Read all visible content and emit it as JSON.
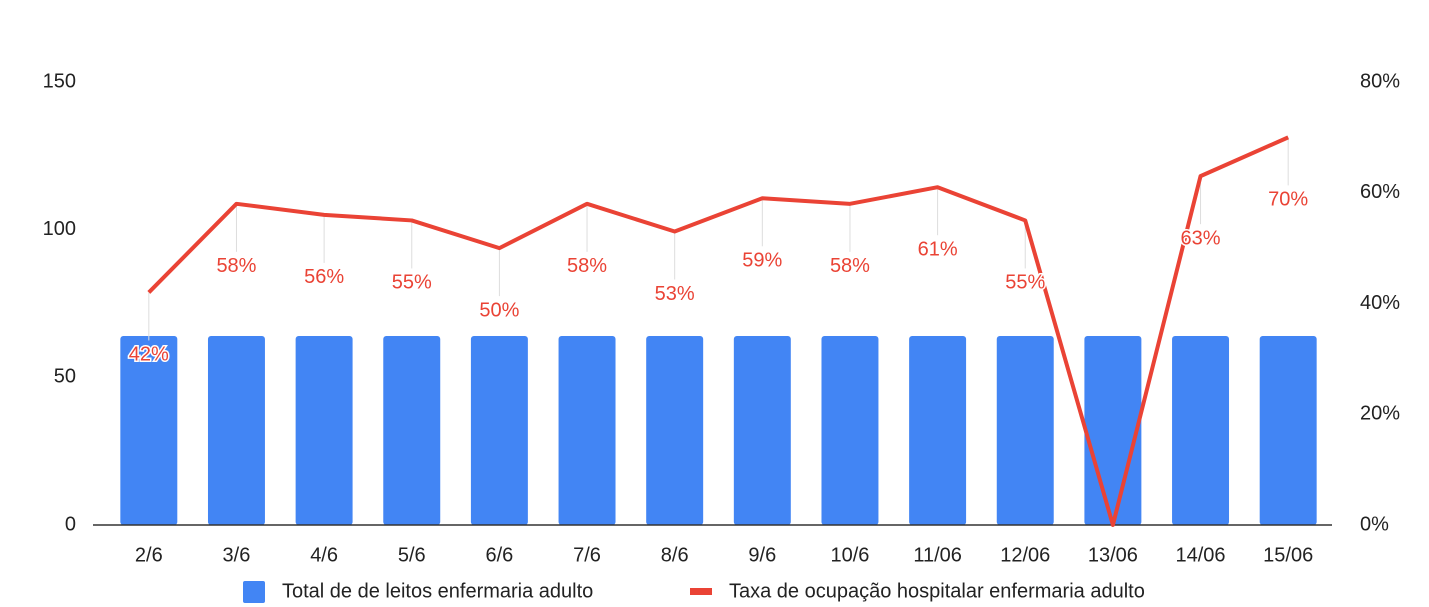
{
  "chart_data": {
    "type": "bar_line",
    "categories": [
      "2/6",
      "3/6",
      "4/6",
      "5/6",
      "6/6",
      "7/6",
      "8/6",
      "9/6",
      "10/6",
      "11/06",
      "12/06",
      "13/06",
      "14/06",
      "15/06"
    ],
    "series": [
      {
        "name": "Total de de leitos enfermaria adulto",
        "type": "bar",
        "color": "#4285f4",
        "values": [
          64,
          64,
          64,
          64,
          64,
          64,
          64,
          64,
          64,
          64,
          64,
          64,
          64,
          64
        ]
      },
      {
        "name": "Taxa de ocupação hospitalar enfermaria adulto",
        "type": "line",
        "axis": "y2",
        "color": "#ea4335",
        "values": [
          42,
          58,
          56,
          55,
          50,
          58,
          53,
          59,
          58,
          61,
          55,
          0,
          63,
          70
        ],
        "value_labels": [
          "42%",
          "58%",
          "56%",
          "55%",
          "50%",
          "58%",
          "53%",
          "59%",
          "58%",
          "61%",
          "55%",
          null,
          "63%",
          "70%"
        ]
      }
    ],
    "ylim": [
      0,
      150
    ],
    "yticks": [
      0,
      50,
      100,
      150
    ],
    "y2lim": [
      0,
      80
    ],
    "y2ticks": [
      {
        "value": 0,
        "label": "0%"
      },
      {
        "value": 20,
        "label": "20%"
      },
      {
        "value": 40,
        "label": "40%"
      },
      {
        "value": 60,
        "label": "60%"
      },
      {
        "value": 80,
        "label": "80%"
      }
    ],
    "legend": "bottom"
  }
}
